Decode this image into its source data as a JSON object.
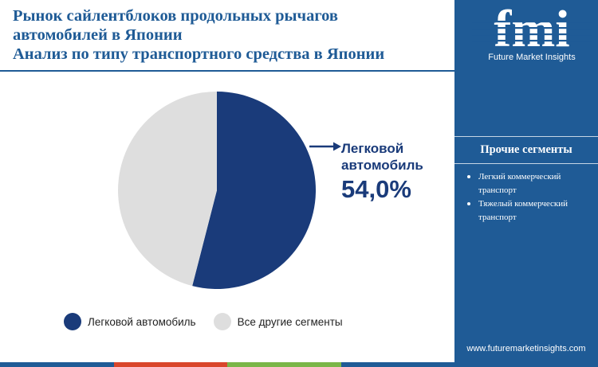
{
  "title": {
    "line1": "Рынок сайлентблоков продольных рычагов",
    "line2": "автомобилей в Японии",
    "line3": "Анализ по типу транспортного средства в Японии"
  },
  "chart_data": {
    "type": "pie",
    "slices": [
      {
        "label": "Легковой автомобиль",
        "value": 54.0,
        "color": "#1a3b7a"
      },
      {
        "label": "Все другие сегменты",
        "value": 46.0,
        "color": "#dedede"
      }
    ],
    "annotation": {
      "label_line1": "Легковой",
      "label_line2": "автомобиль",
      "value_text": "54,0%"
    },
    "legend_position": "bottom"
  },
  "legend": [
    {
      "label": "Легковой автомобиль",
      "color": "#1a3b7a"
    },
    {
      "label": "Все другие сегменты",
      "color": "#dedede"
    }
  ],
  "sidebar": {
    "logo_text": "fmi",
    "tagline": "Future Market Insights",
    "heading": "Прочие сегменты",
    "items": [
      "Легкий коммерческий транспорт",
      "Тяжелый коммерческий транспорт"
    ],
    "website": "www.futuremarketinsights.com"
  },
  "colors": {
    "brand_blue": "#1f5b96",
    "navy": "#1a3b7a",
    "light_gray": "#dedede",
    "bar": [
      "#1f5b96",
      "#d9462b",
      "#7ab648",
      "#1f5b96"
    ]
  }
}
